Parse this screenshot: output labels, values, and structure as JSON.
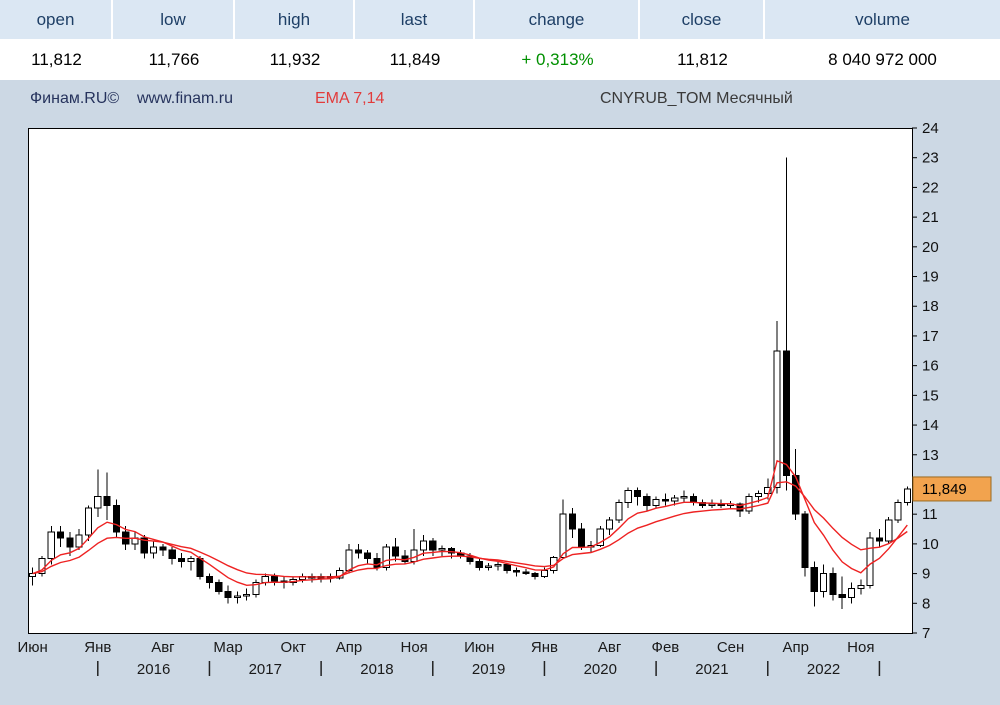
{
  "quote_panel": {
    "cells": [
      {
        "key": "open",
        "label": "open",
        "value": "11,812"
      },
      {
        "key": "low",
        "label": "low",
        "value": "11,766"
      },
      {
        "key": "high",
        "label": "high",
        "value": "11,932"
      },
      {
        "key": "last",
        "label": "last",
        "value": "11,849"
      },
      {
        "key": "change",
        "label": "change",
        "value": "+ 0,313%"
      },
      {
        "key": "close",
        "label": "close",
        "value": "11,812"
      },
      {
        "key": "volume",
        "label": "volume",
        "value": "8 040 972 000"
      }
    ]
  },
  "chart_header": {
    "brand": "Финам.RU©",
    "site": "www.finam.ru",
    "ema": "EMA 7,14",
    "instrument": "CNYRUB_TOM Месячный"
  },
  "colors": {
    "page_bg": "#ccd8e4",
    "header_bg": "#dbe7f3",
    "header_text": "#1e3f66",
    "change_green": "#009000",
    "brand_text": "#26335d",
    "ema_text": "#e23b3b",
    "instrument_text": "#3a3a3a",
    "ema_line": "#ee2222",
    "candle_up": "#ffffff",
    "candle_down": "#000000",
    "tag_bg": "#f2a34e",
    "tag_border": "#9a6a20",
    "axis_text": "#111111"
  },
  "chart_data": {
    "type": "candlestick",
    "title": "CNYRUB_TOM Месячный",
    "ylim": [
      7,
      24
    ],
    "y_ticks": [
      7,
      8,
      9,
      10,
      11,
      12,
      13,
      14,
      15,
      16,
      17,
      18,
      19,
      20,
      21,
      22,
      23,
      24
    ],
    "grid": false,
    "ema_periods": [
      7,
      14
    ],
    "last_price": 11.849,
    "last_price_label": "11,849",
    "candles": [
      [
        8.9,
        9.2,
        8.6,
        9.0
      ],
      [
        9.0,
        9.6,
        8.9,
        9.5
      ],
      [
        9.5,
        10.6,
        9.3,
        10.4
      ],
      [
        10.4,
        10.6,
        9.9,
        10.2
      ],
      [
        10.2,
        10.4,
        9.6,
        9.9
      ],
      [
        9.9,
        10.5,
        9.8,
        10.3
      ],
      [
        10.3,
        11.3,
        10.1,
        11.2
      ],
      [
        11.2,
        12.5,
        10.9,
        11.6
      ],
      [
        11.6,
        12.4,
        10.8,
        11.3
      ],
      [
        11.3,
        11.5,
        10.2,
        10.4
      ],
      [
        10.4,
        10.6,
        9.8,
        10.0
      ],
      [
        10.0,
        10.4,
        9.8,
        10.2
      ],
      [
        10.2,
        10.3,
        9.5,
        9.7
      ],
      [
        9.7,
        10.1,
        9.5,
        9.9
      ],
      [
        9.9,
        10.0,
        9.6,
        9.8
      ],
      [
        9.8,
        9.9,
        9.3,
        9.5
      ],
      [
        9.5,
        9.7,
        9.2,
        9.4
      ],
      [
        9.4,
        9.6,
        9.1,
        9.5
      ],
      [
        9.5,
        9.6,
        8.8,
        8.9
      ],
      [
        8.9,
        9.0,
        8.5,
        8.7
      ],
      [
        8.7,
        8.8,
        8.3,
        8.4
      ],
      [
        8.4,
        8.6,
        8.0,
        8.2
      ],
      [
        8.2,
        8.4,
        8.0,
        8.25
      ],
      [
        8.25,
        8.5,
        8.1,
        8.3
      ],
      [
        8.3,
        8.8,
        8.2,
        8.7
      ],
      [
        8.7,
        9.0,
        8.6,
        8.9
      ],
      [
        8.9,
        9.0,
        8.6,
        8.75
      ],
      [
        8.75,
        8.9,
        8.5,
        8.7
      ],
      [
        8.7,
        8.9,
        8.6,
        8.8
      ],
      [
        8.8,
        9.0,
        8.7,
        8.9
      ],
      [
        8.9,
        9.0,
        8.7,
        8.85
      ],
      [
        8.85,
        9.0,
        8.7,
        8.9
      ],
      [
        8.9,
        9.0,
        8.7,
        8.85
      ],
      [
        8.85,
        9.2,
        8.8,
        9.1
      ],
      [
        9.1,
        10.0,
        9.0,
        9.8
      ],
      [
        9.8,
        10.0,
        9.5,
        9.7
      ],
      [
        9.7,
        9.8,
        9.3,
        9.5
      ],
      [
        9.5,
        9.7,
        9.1,
        9.2
      ],
      [
        9.2,
        10.0,
        9.1,
        9.9
      ],
      [
        9.9,
        10.2,
        9.4,
        9.6
      ],
      [
        9.6,
        9.8,
        9.3,
        9.4
      ],
      [
        9.4,
        10.5,
        9.3,
        9.8
      ],
      [
        9.8,
        10.3,
        9.6,
        10.1
      ],
      [
        10.1,
        10.2,
        9.6,
        9.8
      ],
      [
        9.8,
        9.95,
        9.6,
        9.85
      ],
      [
        9.85,
        9.9,
        9.5,
        9.7
      ],
      [
        9.7,
        9.8,
        9.5,
        9.6
      ],
      [
        9.6,
        9.7,
        9.3,
        9.4
      ],
      [
        9.4,
        9.5,
        9.1,
        9.2
      ],
      [
        9.2,
        9.35,
        9.1,
        9.25
      ],
      [
        9.25,
        9.4,
        9.1,
        9.3
      ],
      [
        9.3,
        9.35,
        9.0,
        9.1
      ],
      [
        9.1,
        9.2,
        8.9,
        9.05
      ],
      [
        9.05,
        9.15,
        8.95,
        9.0
      ],
      [
        9.0,
        9.05,
        8.8,
        8.9
      ],
      [
        8.9,
        9.2,
        8.85,
        9.1
      ],
      [
        9.1,
        9.6,
        9.0,
        9.55
      ],
      [
        9.55,
        11.5,
        9.5,
        11.0
      ],
      [
        11.0,
        11.2,
        10.2,
        10.5
      ],
      [
        10.5,
        10.7,
        9.8,
        9.9
      ],
      [
        9.9,
        10.1,
        9.7,
        9.95
      ],
      [
        9.95,
        10.6,
        9.9,
        10.5
      ],
      [
        10.5,
        10.9,
        10.3,
        10.8
      ],
      [
        10.8,
        11.5,
        10.7,
        11.4
      ],
      [
        11.4,
        11.9,
        11.2,
        11.8
      ],
      [
        11.8,
        11.9,
        11.3,
        11.6
      ],
      [
        11.6,
        11.7,
        11.1,
        11.3
      ],
      [
        11.3,
        11.6,
        11.2,
        11.5
      ],
      [
        11.5,
        11.7,
        11.3,
        11.45
      ],
      [
        11.45,
        11.65,
        11.3,
        11.55
      ],
      [
        11.55,
        11.8,
        11.4,
        11.6
      ],
      [
        11.6,
        11.7,
        11.3,
        11.4
      ],
      [
        11.4,
        11.5,
        11.2,
        11.3
      ],
      [
        11.3,
        11.5,
        11.2,
        11.35
      ],
      [
        11.35,
        11.5,
        11.2,
        11.3
      ],
      [
        11.3,
        11.45,
        11.2,
        11.35
      ],
      [
        11.35,
        11.4,
        10.9,
        11.1
      ],
      [
        11.1,
        11.7,
        11.0,
        11.6
      ],
      [
        11.6,
        11.8,
        11.4,
        11.7
      ],
      [
        11.7,
        12.2,
        11.5,
        11.9
      ],
      [
        11.9,
        17.5,
        11.7,
        16.5
      ],
      [
        16.5,
        23.0,
        11.8,
        12.3
      ],
      [
        12.3,
        13.2,
        10.8,
        11.0
      ],
      [
        11.0,
        11.1,
        8.9,
        9.2
      ],
      [
        9.2,
        9.4,
        7.9,
        8.4
      ],
      [
        8.4,
        9.3,
        8.2,
        9.0
      ],
      [
        9.0,
        9.2,
        8.1,
        8.3
      ],
      [
        8.3,
        8.9,
        7.8,
        8.2
      ],
      [
        8.2,
        8.7,
        8.0,
        8.5
      ],
      [
        8.5,
        8.8,
        8.3,
        8.6
      ],
      [
        8.6,
        10.4,
        8.5,
        10.2
      ],
      [
        10.2,
        10.5,
        9.9,
        10.1
      ],
      [
        10.1,
        10.9,
        10.0,
        10.8
      ],
      [
        10.8,
        11.5,
        10.7,
        11.4
      ],
      [
        11.4,
        11.93,
        11.3,
        11.85
      ]
    ],
    "month_labels": [
      {
        "i": 0,
        "t": "Июн"
      },
      {
        "i": 7,
        "t": "Янв"
      },
      {
        "i": 14,
        "t": "Авг"
      },
      {
        "i": 21,
        "t": "Мар"
      },
      {
        "i": 28,
        "t": "Окт"
      },
      {
        "i": 34,
        "t": "Апр"
      },
      {
        "i": 41,
        "t": "Ноя"
      },
      {
        "i": 48,
        "t": "Июн"
      },
      {
        "i": 55,
        "t": "Янв"
      },
      {
        "i": 62,
        "t": "Авг"
      },
      {
        "i": 68,
        "t": "Фев"
      },
      {
        "i": 75,
        "t": "Сен"
      },
      {
        "i": 82,
        "t": "Апр"
      },
      {
        "i": 89,
        "t": "Ноя"
      }
    ],
    "years": [
      {
        "jan": 7,
        "t": "2016"
      },
      {
        "jan": 19,
        "t": "2017"
      },
      {
        "jan": 31,
        "t": "2018"
      },
      {
        "jan": 43,
        "t": "2019"
      },
      {
        "jan": 55,
        "t": "2020"
      },
      {
        "jan": 67,
        "t": "2021"
      },
      {
        "jan": 79,
        "t": "2022"
      },
      {
        "jan": 91,
        "t": ""
      }
    ]
  }
}
